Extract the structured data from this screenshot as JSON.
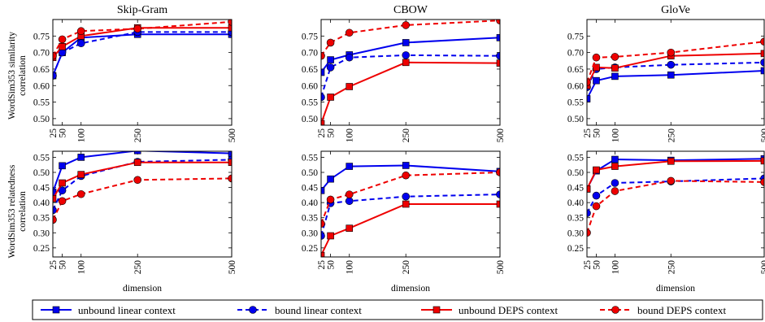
{
  "figure": {
    "x_axis_label": "dimension",
    "row_labels": [
      [
        "WordSim353 similarity",
        "correlation"
      ],
      [
        "WordSim353 relatedness",
        "correlation"
      ]
    ]
  },
  "legend": [
    {
      "label": "unbound linear context",
      "color": "#0000ee",
      "dashed": false,
      "marker": "square"
    },
    {
      "label": "bound linear context",
      "color": "#0000ee",
      "dashed": true,
      "marker": "circle"
    },
    {
      "label": "unbound DEPS context",
      "color": "#ee0000",
      "dashed": false,
      "marker": "square"
    },
    {
      "label": "bound DEPS context",
      "color": "#ee0000",
      "dashed": true,
      "marker": "circle"
    }
  ],
  "chart_data": [
    {
      "type": "line",
      "title": "Skip-Gram",
      "ylabel": "WordSim353 similarity correlation",
      "xlabel": "",
      "x": [
        25,
        50,
        100,
        250,
        500
      ],
      "xticks": [
        "25",
        "50",
        "100",
        "250",
        "500"
      ],
      "ylim": [
        0.48,
        0.8
      ],
      "yticks": [
        "0.50",
        "0.55",
        "0.60",
        "0.65",
        "0.70",
        "0.75"
      ],
      "series": [
        {
          "name": "unbound linear context",
          "values": [
            0.63,
            0.7,
            0.745,
            0.755,
            0.755
          ]
        },
        {
          "name": "bound linear context",
          "values": [
            0.63,
            0.7,
            0.728,
            0.762,
            0.762
          ]
        },
        {
          "name": "unbound DEPS context",
          "values": [
            0.685,
            0.718,
            0.75,
            0.775,
            0.775
          ]
        },
        {
          "name": "bound DEPS context",
          "values": [
            0.69,
            0.74,
            0.765,
            0.772,
            0.793
          ]
        }
      ]
    },
    {
      "type": "line",
      "title": "CBOW",
      "ylabel": "",
      "xlabel": "",
      "x": [
        25,
        50,
        100,
        250,
        500
      ],
      "xticks": [
        "25",
        "50",
        "100",
        "250",
        "500"
      ],
      "ylim": [
        0.48,
        0.8
      ],
      "yticks": [
        "0.50",
        "0.55",
        "0.60",
        "0.65",
        "0.70",
        "0.75"
      ],
      "series": [
        {
          "name": "unbound linear context",
          "values": [
            0.64,
            0.678,
            0.693,
            0.73,
            0.745
          ]
        },
        {
          "name": "bound linear context",
          "values": [
            0.565,
            0.655,
            0.685,
            0.692,
            0.69
          ]
        },
        {
          "name": "unbound DEPS context",
          "values": [
            0.485,
            0.565,
            0.597,
            0.67,
            0.668
          ]
        },
        {
          "name": "bound DEPS context",
          "values": [
            0.69,
            0.73,
            0.76,
            0.783,
            0.797
          ]
        }
      ]
    },
    {
      "type": "line",
      "title": "GloVe",
      "ylabel": "",
      "xlabel": "",
      "x": [
        25,
        50,
        100,
        250,
        500
      ],
      "xticks": [
        "25",
        "50",
        "100",
        "250",
        "500"
      ],
      "ylim": [
        0.48,
        0.8
      ],
      "yticks": [
        "0.50",
        "0.55",
        "0.60",
        "0.65",
        "0.70",
        "0.75"
      ],
      "series": [
        {
          "name": "unbound linear context",
          "values": [
            0.56,
            0.615,
            0.628,
            0.632,
            0.645
          ]
        },
        {
          "name": "bound linear context",
          "values": [
            0.595,
            0.65,
            0.655,
            0.663,
            0.67
          ]
        },
        {
          "name": "unbound DEPS context",
          "values": [
            0.6,
            0.655,
            0.653,
            0.69,
            0.697
          ]
        },
        {
          "name": "bound DEPS context",
          "values": [
            0.61,
            0.685,
            0.687,
            0.7,
            0.733
          ]
        }
      ]
    },
    {
      "type": "line",
      "title": "",
      "ylabel": "WordSim353 relatedness correlation",
      "xlabel": "dimension",
      "x": [
        25,
        50,
        100,
        250,
        500
      ],
      "xticks": [
        "25",
        "50",
        "100",
        "250",
        "500"
      ],
      "ylim": [
        0.22,
        0.57
      ],
      "yticks": [
        "0.25",
        "0.30",
        "0.35",
        "0.40",
        "0.45",
        "0.50",
        "0.55"
      ],
      "series": [
        {
          "name": "unbound linear context",
          "values": [
            0.435,
            0.522,
            0.55,
            0.572,
            0.563
          ]
        },
        {
          "name": "bound linear context",
          "values": [
            0.375,
            0.44,
            0.488,
            0.535,
            0.542
          ]
        },
        {
          "name": "unbound DEPS context",
          "values": [
            0.413,
            0.465,
            0.493,
            0.533,
            0.533
          ]
        },
        {
          "name": "bound DEPS context",
          "values": [
            0.343,
            0.405,
            0.428,
            0.475,
            0.48
          ]
        }
      ]
    },
    {
      "type": "line",
      "title": "",
      "ylabel": "",
      "xlabel": "dimension",
      "x": [
        25,
        50,
        100,
        250,
        500
      ],
      "xticks": [
        "25",
        "50",
        "100",
        "250",
        "500"
      ],
      "ylim": [
        0.22,
        0.57
      ],
      "yticks": [
        "0.25",
        "0.30",
        "0.35",
        "0.40",
        "0.45",
        "0.50",
        "0.55"
      ],
      "series": [
        {
          "name": "unbound linear context",
          "values": [
            0.44,
            0.478,
            0.52,
            0.523,
            0.503
          ]
        },
        {
          "name": "bound linear context",
          "values": [
            0.29,
            0.398,
            0.405,
            0.42,
            0.427
          ]
        },
        {
          "name": "unbound DEPS context",
          "values": [
            0.225,
            0.29,
            0.315,
            0.395,
            0.395
          ]
        },
        {
          "name": "bound DEPS context",
          "values": [
            0.33,
            0.41,
            0.427,
            0.49,
            0.5
          ]
        }
      ]
    },
    {
      "type": "line",
      "title": "",
      "ylabel": "",
      "xlabel": "dimension",
      "x": [
        25,
        50,
        100,
        250,
        500
      ],
      "xticks": [
        "25",
        "50",
        "100",
        "250",
        "500"
      ],
      "ylim": [
        0.22,
        0.57
      ],
      "yticks": [
        "0.25",
        "0.30",
        "0.35",
        "0.40",
        "0.45",
        "0.50",
        "0.55"
      ],
      "series": [
        {
          "name": "unbound linear context",
          "values": [
            0.445,
            0.505,
            0.543,
            0.54,
            0.545
          ]
        },
        {
          "name": "bound linear context",
          "values": [
            0.365,
            0.423,
            0.465,
            0.47,
            0.48
          ]
        },
        {
          "name": "unbound DEPS context",
          "values": [
            0.445,
            0.508,
            0.52,
            0.537,
            0.538
          ]
        },
        {
          "name": "bound DEPS context",
          "values": [
            0.3,
            0.388,
            0.438,
            0.472,
            0.468
          ]
        }
      ]
    }
  ]
}
